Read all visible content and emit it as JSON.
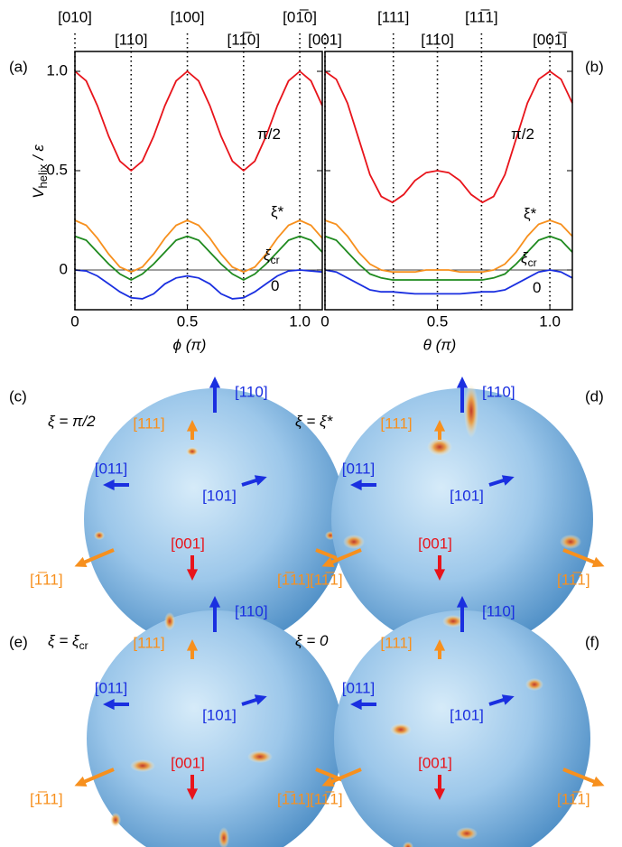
{
  "chart_data": [
    {
      "type": "line",
      "letter": "(a)",
      "xlabel": "ϕ (π)",
      "ylabel": "V",
      "ylabel_sub": "helix",
      "ylabel_rest": " / ε",
      "xlim": [
        0,
        1.1
      ],
      "ylim": [
        -0.2,
        1.1
      ],
      "xticks": [
        0,
        0.5,
        {
          "value": 1,
          "label": "1.0"
        }
      ],
      "yticks": [
        0,
        0.5,
        {
          "value": 1,
          "label": "1.0"
        }
      ],
      "x": [
        0,
        0.05,
        0.1,
        0.15,
        0.2,
        0.25,
        0.3,
        0.35,
        0.4,
        0.45,
        0.5,
        0.55,
        0.6,
        0.65,
        0.7,
        0.75,
        0.8,
        0.85,
        0.9,
        0.95,
        1,
        1.05,
        1.1
      ],
      "directions": [
        {
          "x": 0,
          "label": "[010]"
        },
        {
          "x": 0.25,
          "label": "[110]"
        },
        {
          "x": 0.5,
          "label": "[100]"
        },
        {
          "x": 0.75,
          "label": "[11̅0]"
        },
        {
          "x": 1,
          "label": "[01̅0]"
        }
      ],
      "series": [
        {
          "name": "π/2",
          "color": "#e8141b",
          "values": [
            1,
            0.952,
            0.827,
            0.673,
            0.548,
            0.5,
            0.548,
            0.673,
            0.827,
            0.952,
            1,
            0.952,
            0.827,
            0.673,
            0.548,
            0.5,
            0.548,
            0.673,
            0.827,
            0.952,
            1,
            0.952,
            0.827
          ]
        },
        {
          "name": "ξ*",
          "color": "#f7901e",
          "values": [
            0.25,
            0.225,
            0.16,
            0.08,
            0.015,
            -0.01,
            0.015,
            0.08,
            0.16,
            0.225,
            0.25,
            0.225,
            0.16,
            0.08,
            0.015,
            -0.01,
            0.015,
            0.08,
            0.16,
            0.225,
            0.25,
            0.225,
            0.16
          ]
        },
        {
          "name": "ξ",
          "name_sub": "cr",
          "color": "#1f8a1f",
          "values": [
            0.17,
            0.15,
            0.09,
            0.03,
            -0.02,
            -0.05,
            -0.02,
            0.03,
            0.09,
            0.15,
            0.17,
            0.15,
            0.09,
            0.03,
            -0.02,
            -0.05,
            -0.02,
            0.03,
            0.09,
            0.15,
            0.17,
            0.15,
            0.09
          ]
        },
        {
          "name": "0",
          "color": "#1a2fe0",
          "values": [
            0,
            -0.005,
            -0.03,
            -0.07,
            -0.11,
            -0.14,
            -0.145,
            -0.12,
            -0.07,
            -0.04,
            -0.03,
            -0.04,
            -0.07,
            -0.12,
            -0.145,
            -0.14,
            -0.11,
            -0.07,
            -0.03,
            -0.005,
            0,
            -0.005,
            -0.01
          ]
        }
      ]
    },
    {
      "type": "line",
      "letter": "(b)",
      "xlabel": "θ (π)",
      "xlim": [
        0,
        1.1
      ],
      "ylim": [
        -0.2,
        1.1
      ],
      "xticks": [
        0,
        0.5,
        {
          "value": 1,
          "label": "1.0"
        }
      ],
      "yticks": [
        0,
        0.5,
        1
      ],
      "x": [
        0,
        0.05,
        0.1,
        0.15,
        0.2,
        0.25,
        0.3,
        0.35,
        0.4,
        0.45,
        0.5,
        0.55,
        0.6,
        0.65,
        0.7,
        0.75,
        0.8,
        0.85,
        0.9,
        0.95,
        1,
        1.05,
        1.1
      ],
      "directions": [
        {
          "x": 0,
          "label": "[001]"
        },
        {
          "x": 0.304,
          "label": "[111]"
        },
        {
          "x": 0.5,
          "label": "[110]"
        },
        {
          "x": 0.696,
          "label": "[11̅1]"
        },
        {
          "x": 1,
          "label": "[001̅]"
        }
      ],
      "series": [
        {
          "name": "π/2",
          "color": "#e8141b",
          "values": [
            1,
            0.96,
            0.84,
            0.66,
            0.48,
            0.37,
            0.34,
            0.38,
            0.45,
            0.49,
            0.5,
            0.49,
            0.45,
            0.38,
            0.34,
            0.37,
            0.48,
            0.66,
            0.84,
            0.96,
            1,
            0.96,
            0.84
          ]
        },
        {
          "name": "ξ*",
          "color": "#f7901e",
          "values": [
            0.25,
            0.23,
            0.17,
            0.09,
            0.03,
            0,
            -0.01,
            -0.01,
            -0.01,
            0,
            0,
            0,
            -0.01,
            -0.01,
            -0.01,
            0,
            0.03,
            0.09,
            0.17,
            0.23,
            0.25,
            0.23,
            0.17
          ]
        },
        {
          "name": "ξ",
          "name_sub": "cr",
          "color": "#1f8a1f",
          "values": [
            0.17,
            0.15,
            0.09,
            0.03,
            -0.02,
            -0.04,
            -0.05,
            -0.05,
            -0.05,
            -0.05,
            -0.05,
            -0.05,
            -0.05,
            -0.05,
            -0.05,
            -0.04,
            -0.02,
            0.03,
            0.09,
            0.15,
            0.17,
            0.15,
            0.09
          ]
        },
        {
          "name": "0",
          "color": "#1a2fe0",
          "values": [
            0,
            -0.01,
            -0.04,
            -0.07,
            -0.1,
            -0.11,
            -0.11,
            -0.115,
            -0.12,
            -0.12,
            -0.12,
            -0.12,
            -0.12,
            -0.115,
            -0.11,
            -0.11,
            -0.1,
            -0.07,
            -0.04,
            -0.01,
            0,
            -0.01,
            -0.04
          ]
        }
      ]
    }
  ],
  "sphere_directions": [
    {
      "label": "[110]",
      "color": "#1a2fe0"
    },
    {
      "label": "[111]",
      "color": "#f7901e"
    },
    {
      "label": "[011]",
      "color": "#1a2fe0"
    },
    {
      "label": "[101]",
      "color": "#1a2fe0"
    },
    {
      "label": "[001]",
      "color": "#e8141b"
    },
    {
      "label": "[1̅11]",
      "color": "#f7901e"
    },
    {
      "label": "[11̅1]",
      "color": "#f7901e"
    }
  ],
  "panels": [
    {
      "letter": "(c)",
      "xi": "ξ = π/2"
    },
    {
      "letter": "(d)",
      "xi": "ξ = ξ*"
    },
    {
      "letter": "(e)",
      "xi": "ξ = ξ",
      "xi_sub": "cr"
    },
    {
      "letter": "(f)",
      "xi": "ξ = 0"
    }
  ]
}
